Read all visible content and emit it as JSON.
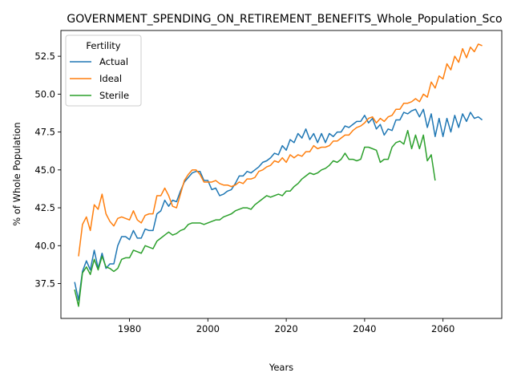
{
  "chart_data": {
    "type": "line",
    "title": "GOVERNMENT_SPENDING_ON_RETIREMENT_BENEFITS_Whole_Population_Sco",
    "xlabel": "Years",
    "ylabel": "% of Whole Population",
    "xlim": [
      1962.5,
      2075
    ],
    "ylim": [
      35.2,
      54.2
    ],
    "xticks": [
      1980,
      2000,
      2020,
      2040,
      2060
    ],
    "xtick_labels": [
      "1980",
      "2000",
      "2020",
      "2040",
      "2060"
    ],
    "yticks": [
      37.5,
      40.0,
      42.5,
      45.0,
      47.5,
      50.0,
      52.5
    ],
    "ytick_labels": [
      "37.5",
      "40.0",
      "42.5",
      "45.0",
      "47.5",
      "50.0",
      "52.5"
    ],
    "grid": false,
    "legend": {
      "title": "Fertility",
      "placement": "top-left",
      "entries": [
        "Actual",
        "Ideal",
        "Sterile"
      ]
    },
    "series": [
      {
        "name": "Actual",
        "color": "#1f77b4",
        "x": [
          1966,
          1967,
          1968,
          1969,
          1970,
          1971,
          1972,
          1973,
          1974,
          1975,
          1976,
          1977,
          1978,
          1979,
          1980,
          1981,
          1982,
          1983,
          1984,
          1985,
          1986,
          1987,
          1988,
          1989,
          1990,
          1991,
          1992,
          1993,
          1994,
          1995,
          1996,
          1997,
          1998,
          1999,
          2000,
          2001,
          2002,
          2003,
          2004,
          2005,
          2006,
          2007,
          2008,
          2009,
          2010,
          2011,
          2012,
          2013,
          2014,
          2015,
          2016,
          2017,
          2018,
          2019,
          2020,
          2021,
          2022,
          2023,
          2024,
          2025,
          2026,
          2027,
          2028,
          2029,
          2030,
          2031,
          2032,
          2033,
          2034,
          2035,
          2036,
          2037,
          2038,
          2039,
          2040,
          2041,
          2042,
          2043,
          2044,
          2045,
          2046,
          2047,
          2048,
          2049,
          2050,
          2051,
          2052,
          2053,
          2054,
          2055,
          2056,
          2057,
          2058,
          2059,
          2060,
          2061,
          2062,
          2063,
          2064,
          2065,
          2066,
          2067,
          2068,
          2069,
          2070
        ],
        "y": [
          37.6,
          36.4,
          38.3,
          39.0,
          38.4,
          39.7,
          38.5,
          39.5,
          38.5,
          38.8,
          38.8,
          40.0,
          40.6,
          40.6,
          40.4,
          41.0,
          40.5,
          40.5,
          41.1,
          41.0,
          41.0,
          42.1,
          42.3,
          43.0,
          42.6,
          43.0,
          42.9,
          43.6,
          44.2,
          44.5,
          44.8,
          44.9,
          44.9,
          44.3,
          44.3,
          43.7,
          43.8,
          43.3,
          43.4,
          43.6,
          43.7,
          44.1,
          44.6,
          44.6,
          44.9,
          44.8,
          45.0,
          45.2,
          45.5,
          45.6,
          45.8,
          46.1,
          46.0,
          46.6,
          46.3,
          47.0,
          46.8,
          47.4,
          47.1,
          47.7,
          47.0,
          47.4,
          46.8,
          47.4,
          46.8,
          47.4,
          47.2,
          47.5,
          47.5,
          47.9,
          47.8,
          48.0,
          48.2,
          48.2,
          48.6,
          48.1,
          48.4,
          47.7,
          48.0,
          47.3,
          47.7,
          47.6,
          48.3,
          48.3,
          48.8,
          48.7,
          48.9,
          49.0,
          48.5,
          49.0,
          47.8,
          48.7,
          47.2,
          48.4,
          47.2,
          48.4,
          47.5,
          48.6,
          47.8,
          48.7,
          48.2,
          48.8,
          48.4,
          48.5,
          48.3
        ]
      },
      {
        "name": "Ideal",
        "color": "#ff7f0e",
        "x": [
          1967,
          1968,
          1969,
          1970,
          1971,
          1972,
          1973,
          1974,
          1975,
          1976,
          1977,
          1978,
          1979,
          1980,
          1981,
          1982,
          1983,
          1984,
          1985,
          1986,
          1987,
          1988,
          1989,
          1990,
          1991,
          1992,
          1993,
          1994,
          1995,
          1996,
          1997,
          1998,
          1999,
          2000,
          2001,
          2002,
          2003,
          2004,
          2005,
          2006,
          2007,
          2008,
          2009,
          2010,
          2011,
          2012,
          2013,
          2014,
          2015,
          2016,
          2017,
          2018,
          2019,
          2020,
          2021,
          2022,
          2023,
          2024,
          2025,
          2026,
          2027,
          2028,
          2029,
          2030,
          2031,
          2032,
          2033,
          2034,
          2035,
          2036,
          2037,
          2038,
          2039,
          2040,
          2041,
          2042,
          2043,
          2044,
          2045,
          2046,
          2047,
          2048,
          2049,
          2050,
          2051,
          2052,
          2053,
          2054,
          2055,
          2056,
          2057,
          2058,
          2059,
          2060,
          2061,
          2062,
          2063,
          2064,
          2065,
          2066,
          2067,
          2068,
          2069,
          2070
        ],
        "y": [
          39.3,
          41.4,
          41.9,
          41.0,
          42.7,
          42.4,
          43.4,
          42.1,
          41.6,
          41.3,
          41.8,
          41.9,
          41.8,
          41.7,
          42.3,
          41.7,
          41.5,
          42.0,
          42.1,
          42.1,
          43.3,
          43.3,
          43.8,
          43.3,
          42.6,
          42.5,
          43.4,
          44.3,
          44.7,
          45.0,
          45.0,
          44.7,
          44.2,
          44.2,
          44.2,
          44.3,
          44.1,
          44.0,
          44.0,
          43.9,
          44.0,
          44.2,
          44.1,
          44.4,
          44.4,
          44.5,
          44.9,
          45.0,
          45.2,
          45.3,
          45.6,
          45.5,
          45.8,
          45.5,
          46.0,
          45.8,
          46.0,
          45.9,
          46.2,
          46.2,
          46.6,
          46.4,
          46.5,
          46.5,
          46.6,
          46.9,
          46.9,
          47.1,
          47.3,
          47.3,
          47.6,
          47.8,
          47.9,
          48.1,
          48.4,
          48.5,
          48.1,
          48.4,
          48.2,
          48.5,
          48.6,
          49.0,
          49.0,
          49.4,
          49.4,
          49.5,
          49.7,
          49.5,
          50.0,
          49.8,
          50.8,
          50.4,
          51.2,
          51.0,
          52.0,
          51.6,
          52.5,
          52.1,
          53.0,
          52.4,
          53.1,
          52.8,
          53.3,
          53.2
        ]
      },
      {
        "name": "Sterile",
        "color": "#2ca02c",
        "x": [
          1966,
          1967,
          1968,
          1969,
          1970,
          1971,
          1972,
          1973,
          1974,
          1975,
          1976,
          1977,
          1978,
          1979,
          1980,
          1981,
          1982,
          1983,
          1984,
          1985,
          1986,
          1987,
          1988,
          1989,
          1990,
          1991,
          1992,
          1993,
          1994,
          1995,
          1996,
          1997,
          1998,
          1999,
          2000,
          2001,
          2002,
          2003,
          2004,
          2005,
          2006,
          2007,
          2008,
          2009,
          2010,
          2011,
          2012,
          2013,
          2014,
          2015,
          2016,
          2017,
          2018,
          2019,
          2020,
          2021,
          2022,
          2023,
          2024,
          2025,
          2026,
          2027,
          2028,
          2029,
          2030,
          2031,
          2032,
          2033,
          2034,
          2035,
          2036,
          2037,
          2038,
          2039,
          2040,
          2041,
          2042,
          2043,
          2044,
          2045,
          2046,
          2047,
          2048,
          2049,
          2050,
          2051,
          2052,
          2053,
          2054,
          2055,
          2056,
          2057,
          2058
        ],
        "y": [
          37.1,
          36.0,
          38.2,
          38.6,
          38.1,
          39.1,
          38.4,
          39.3,
          38.6,
          38.5,
          38.3,
          38.5,
          39.1,
          39.2,
          39.2,
          39.7,
          39.6,
          39.5,
          40.0,
          39.9,
          39.8,
          40.3,
          40.5,
          40.7,
          40.9,
          40.7,
          40.8,
          41.0,
          41.1,
          41.4,
          41.5,
          41.5,
          41.5,
          41.4,
          41.5,
          41.6,
          41.7,
          41.7,
          41.9,
          42.0,
          42.1,
          42.3,
          42.4,
          42.5,
          42.5,
          42.4,
          42.7,
          42.9,
          43.1,
          43.3,
          43.2,
          43.3,
          43.4,
          43.3,
          43.6,
          43.6,
          43.9,
          44.1,
          44.4,
          44.6,
          44.8,
          44.7,
          44.8,
          45.0,
          45.1,
          45.3,
          45.6,
          45.5,
          45.7,
          46.1,
          45.7,
          45.7,
          45.6,
          45.7,
          46.5,
          46.5,
          46.4,
          46.3,
          45.5,
          45.7,
          45.7,
          46.5,
          46.8,
          46.9,
          46.7,
          47.6,
          46.4,
          47.3,
          46.4,
          47.3,
          45.6,
          46.0,
          44.3
        ]
      }
    ]
  }
}
